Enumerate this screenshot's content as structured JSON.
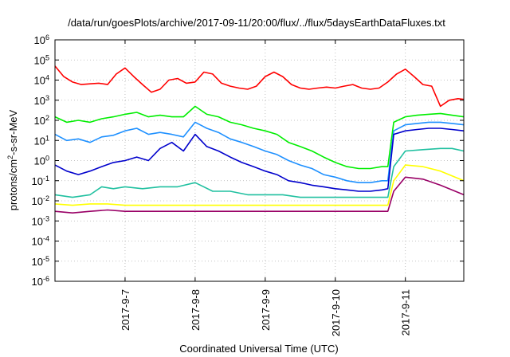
{
  "chart_data": {
    "type": "line",
    "title": "/data/run/goesPlots/archive/2017-09-11/20:00/flux/../flux/5daysEarthDataFluxes.txt",
    "xlabel": "Coordinated Universal Time (UTC)",
    "ylabel": {
      "prefix": "protons/cm",
      "sup": "2",
      "suffix": "-s-sr-MeV"
    },
    "yscale": "log",
    "ylim": [
      1e-06,
      1000000.0
    ],
    "xlim": [
      "2017-09-06T00:00",
      "2017-09-11T20:00"
    ],
    "grid": true,
    "y_ticks": [
      {
        "value": 1e-06,
        "base": "10",
        "exp": "-6"
      },
      {
        "value": 1e-05,
        "base": "10",
        "exp": "-5"
      },
      {
        "value": 0.0001,
        "base": "10",
        "exp": "-4"
      },
      {
        "value": 0.001,
        "base": "10",
        "exp": "-3"
      },
      {
        "value": 0.01,
        "base": "10",
        "exp": "-2"
      },
      {
        "value": 0.1,
        "base": "10",
        "exp": "-1"
      },
      {
        "value": 1,
        "base": "10",
        "exp": "0"
      },
      {
        "value": 10,
        "base": "10",
        "exp": "1"
      },
      {
        "value": 100,
        "base": "10",
        "exp": "2"
      },
      {
        "value": 1000,
        "base": "10",
        "exp": "3"
      },
      {
        "value": 10000,
        "base": "10",
        "exp": "4"
      },
      {
        "value": 100000,
        "base": "10",
        "exp": "5"
      },
      {
        "value": 1000000,
        "base": "10",
        "exp": "6"
      }
    ],
    "x_ticks": [
      {
        "value": "2017-09-07T00:00",
        "label": "2017-9-7"
      },
      {
        "value": "2017-09-08T00:00",
        "label": "2017-9-8"
      },
      {
        "value": "2017-09-09T00:00",
        "label": "2017-9-9"
      },
      {
        "value": "2017-09-10T00:00",
        "label": "2017-9-10"
      },
      {
        "value": "2017-09-11T00:00",
        "label": "2017-9-11"
      }
    ],
    "series": [
      {
        "color": "#ff0000",
        "x": [
          "2017-09-06T00:00",
          "2017-09-06T03:00",
          "2017-09-06T06:00",
          "2017-09-06T09:00",
          "2017-09-06T12:00",
          "2017-09-06T15:00",
          "2017-09-06T18:00",
          "2017-09-06T21:00",
          "2017-09-07T00:00",
          "2017-09-07T03:00",
          "2017-09-07T06:00",
          "2017-09-07T09:00",
          "2017-09-07T12:00",
          "2017-09-07T15:00",
          "2017-09-07T18:00",
          "2017-09-07T21:00",
          "2017-09-08T00:00",
          "2017-09-08T03:00",
          "2017-09-08T06:00",
          "2017-09-08T09:00",
          "2017-09-08T12:00",
          "2017-09-08T15:00",
          "2017-09-08T18:00",
          "2017-09-08T21:00",
          "2017-09-09T00:00",
          "2017-09-09T03:00",
          "2017-09-09T06:00",
          "2017-09-09T09:00",
          "2017-09-09T12:00",
          "2017-09-09T15:00",
          "2017-09-09T18:00",
          "2017-09-09T21:00",
          "2017-09-10T00:00",
          "2017-09-10T03:00",
          "2017-09-10T06:00",
          "2017-09-10T09:00",
          "2017-09-10T12:00",
          "2017-09-10T15:00",
          "2017-09-10T18:00",
          "2017-09-10T21:00",
          "2017-09-11T00:00",
          "2017-09-11T03:00",
          "2017-09-11T06:00",
          "2017-09-11T09:00",
          "2017-09-11T12:00",
          "2017-09-11T15:00",
          "2017-09-11T18:00",
          "2017-09-11T20:00"
        ],
        "y": [
          50000,
          15000,
          8000,
          6000,
          6500,
          7000,
          6000,
          20000,
          40000,
          15000,
          6000,
          2500,
          3500,
          10000,
          12000,
          7000,
          8000,
          25000,
          20000,
          7000,
          5000,
          4000,
          3500,
          5000,
          15000,
          25000,
          15000,
          6000,
          4000,
          3500,
          4000,
          4500,
          4000,
          5000,
          6000,
          4000,
          3500,
          4000,
          8000,
          20000,
          35000,
          15000,
          6000,
          5000,
          500,
          1000,
          1200,
          1100
        ]
      },
      {
        "color": "#00ee00",
        "x": [
          "2017-09-06T00:00",
          "2017-09-06T04:00",
          "2017-09-06T08:00",
          "2017-09-06T12:00",
          "2017-09-06T16:00",
          "2017-09-06T20:00",
          "2017-09-07T00:00",
          "2017-09-07T04:00",
          "2017-09-07T08:00",
          "2017-09-07T12:00",
          "2017-09-07T16:00",
          "2017-09-07T20:00",
          "2017-09-08T00:00",
          "2017-09-08T04:00",
          "2017-09-08T08:00",
          "2017-09-08T12:00",
          "2017-09-08T16:00",
          "2017-09-08T20:00",
          "2017-09-09T00:00",
          "2017-09-09T04:00",
          "2017-09-09T08:00",
          "2017-09-09T12:00",
          "2017-09-09T16:00",
          "2017-09-09T20:00",
          "2017-09-10T00:00",
          "2017-09-10T04:00",
          "2017-09-10T08:00",
          "2017-09-10T12:00",
          "2017-09-10T16:00",
          "2017-09-10T18:00",
          "2017-09-10T20:00",
          "2017-09-11T00:00",
          "2017-09-11T04:00",
          "2017-09-11T08:00",
          "2017-09-11T12:00",
          "2017-09-11T16:00",
          "2017-09-11T20:00"
        ],
        "y": [
          150,
          80,
          100,
          80,
          120,
          150,
          200,
          250,
          150,
          180,
          150,
          150,
          500,
          200,
          150,
          80,
          60,
          40,
          30,
          20,
          8,
          5,
          3,
          1.5,
          0.8,
          0.5,
          0.4,
          0.4,
          0.5,
          0.5,
          80,
          150,
          180,
          200,
          220,
          180,
          150
        ]
      },
      {
        "color": "#1e90ff",
        "x": [
          "2017-09-06T00:00",
          "2017-09-06T04:00",
          "2017-09-06T08:00",
          "2017-09-06T12:00",
          "2017-09-06T16:00",
          "2017-09-06T20:00",
          "2017-09-07T00:00",
          "2017-09-07T04:00",
          "2017-09-07T08:00",
          "2017-09-07T12:00",
          "2017-09-07T16:00",
          "2017-09-07T20:00",
          "2017-09-08T00:00",
          "2017-09-08T04:00",
          "2017-09-08T08:00",
          "2017-09-08T12:00",
          "2017-09-08T16:00",
          "2017-09-08T20:00",
          "2017-09-09T00:00",
          "2017-09-09T04:00",
          "2017-09-09T08:00",
          "2017-09-09T12:00",
          "2017-09-09T16:00",
          "2017-09-09T20:00",
          "2017-09-10T00:00",
          "2017-09-10T04:00",
          "2017-09-10T08:00",
          "2017-09-10T12:00",
          "2017-09-10T16:00",
          "2017-09-10T18:00",
          "2017-09-10T20:00",
          "2017-09-11T00:00",
          "2017-09-11T04:00",
          "2017-09-11T08:00",
          "2017-09-11T12:00",
          "2017-09-11T16:00",
          "2017-09-11T20:00"
        ],
        "y": [
          20,
          10,
          12,
          8,
          15,
          18,
          30,
          40,
          20,
          25,
          20,
          15,
          80,
          40,
          25,
          12,
          8,
          5,
          3,
          2,
          1,
          0.6,
          0.4,
          0.2,
          0.15,
          0.1,
          0.08,
          0.08,
          0.1,
          0.1,
          30,
          60,
          70,
          80,
          80,
          70,
          60
        ]
      },
      {
        "color": "#0000cc",
        "x": [
          "2017-09-06T00:00",
          "2017-09-06T04:00",
          "2017-09-06T08:00",
          "2017-09-06T12:00",
          "2017-09-06T16:00",
          "2017-09-06T20:00",
          "2017-09-07T00:00",
          "2017-09-07T04:00",
          "2017-09-07T08:00",
          "2017-09-07T12:00",
          "2017-09-07T16:00",
          "2017-09-07T20:00",
          "2017-09-08T00:00",
          "2017-09-08T04:00",
          "2017-09-08T08:00",
          "2017-09-08T12:00",
          "2017-09-08T16:00",
          "2017-09-08T20:00",
          "2017-09-09T00:00",
          "2017-09-09T04:00",
          "2017-09-09T08:00",
          "2017-09-09T12:00",
          "2017-09-09T16:00",
          "2017-09-09T20:00",
          "2017-09-10T00:00",
          "2017-09-10T04:00",
          "2017-09-10T08:00",
          "2017-09-10T12:00",
          "2017-09-10T16:00",
          "2017-09-10T18:00",
          "2017-09-10T20:00",
          "2017-09-11T00:00",
          "2017-09-11T04:00",
          "2017-09-11T08:00",
          "2017-09-11T12:00",
          "2017-09-11T16:00",
          "2017-09-11T20:00"
        ],
        "y": [
          0.6,
          0.3,
          0.2,
          0.3,
          0.5,
          0.8,
          1,
          1.5,
          1,
          4,
          8,
          3,
          20,
          5,
          3,
          1.5,
          0.8,
          0.5,
          0.3,
          0.2,
          0.1,
          0.08,
          0.06,
          0.05,
          0.04,
          0.035,
          0.03,
          0.03,
          0.035,
          0.04,
          20,
          30,
          35,
          40,
          40,
          35,
          30
        ]
      },
      {
        "color": "#20c0a0",
        "x": [
          "2017-09-06T00:00",
          "2017-09-06T06:00",
          "2017-09-06T12:00",
          "2017-09-06T16:00",
          "2017-09-06T20:00",
          "2017-09-07T00:00",
          "2017-09-07T06:00",
          "2017-09-07T12:00",
          "2017-09-07T18:00",
          "2017-09-08T00:00",
          "2017-09-08T06:00",
          "2017-09-08T12:00",
          "2017-09-08T18:00",
          "2017-09-09T00:00",
          "2017-09-09T06:00",
          "2017-09-09T12:00",
          "2017-09-09T18:00",
          "2017-09-10T00:00",
          "2017-09-10T06:00",
          "2017-09-10T12:00",
          "2017-09-10T18:00",
          "2017-09-10T20:00",
          "2017-09-11T00:00",
          "2017-09-11T06:00",
          "2017-09-11T12:00",
          "2017-09-11T16:00",
          "2017-09-11T20:00"
        ],
        "y": [
          0.02,
          0.015,
          0.02,
          0.05,
          0.04,
          0.05,
          0.04,
          0.05,
          0.05,
          0.08,
          0.03,
          0.03,
          0.02,
          0.02,
          0.02,
          0.015,
          0.015,
          0.015,
          0.015,
          0.015,
          0.015,
          0.5,
          3,
          3.5,
          4,
          4,
          3
        ]
      },
      {
        "color": "#ffff00",
        "x": [
          "2017-09-06T00:00",
          "2017-09-06T06:00",
          "2017-09-06T12:00",
          "2017-09-06T18:00",
          "2017-09-07T00:00",
          "2017-09-07T06:00",
          "2017-09-07T12:00",
          "2017-09-07T18:00",
          "2017-09-08T00:00",
          "2017-09-08T06:00",
          "2017-09-08T12:00",
          "2017-09-08T18:00",
          "2017-09-09T00:00",
          "2017-09-09T06:00",
          "2017-09-09T12:00",
          "2017-09-09T18:00",
          "2017-09-10T00:00",
          "2017-09-10T06:00",
          "2017-09-10T12:00",
          "2017-09-10T18:00",
          "2017-09-10T20:00",
          "2017-09-11T00:00",
          "2017-09-11T06:00",
          "2017-09-11T12:00",
          "2017-09-11T20:00"
        ],
        "y": [
          0.007,
          0.006,
          0.007,
          0.007,
          0.006,
          0.006,
          0.006,
          0.006,
          0.006,
          0.006,
          0.006,
          0.006,
          0.006,
          0.006,
          0.006,
          0.006,
          0.006,
          0.006,
          0.006,
          0.006,
          0.1,
          0.6,
          0.5,
          0.3,
          0.1
        ]
      },
      {
        "color": "#990066",
        "x": [
          "2017-09-06T00:00",
          "2017-09-06T06:00",
          "2017-09-06T12:00",
          "2017-09-06T18:00",
          "2017-09-07T00:00",
          "2017-09-07T06:00",
          "2017-09-07T12:00",
          "2017-09-07T18:00",
          "2017-09-08T00:00",
          "2017-09-08T06:00",
          "2017-09-08T12:00",
          "2017-09-08T18:00",
          "2017-09-09T00:00",
          "2017-09-09T06:00",
          "2017-09-09T12:00",
          "2017-09-09T18:00",
          "2017-09-10T00:00",
          "2017-09-10T06:00",
          "2017-09-10T12:00",
          "2017-09-10T18:00",
          "2017-09-10T20:00",
          "2017-09-11T00:00",
          "2017-09-11T06:00",
          "2017-09-11T12:00",
          "2017-09-11T20:00"
        ],
        "y": [
          0.003,
          0.0025,
          0.003,
          0.0035,
          0.003,
          0.003,
          0.003,
          0.003,
          0.003,
          0.003,
          0.003,
          0.003,
          0.003,
          0.003,
          0.003,
          0.003,
          0.003,
          0.003,
          0.003,
          0.003,
          0.03,
          0.15,
          0.12,
          0.06,
          0.02
        ]
      }
    ]
  }
}
